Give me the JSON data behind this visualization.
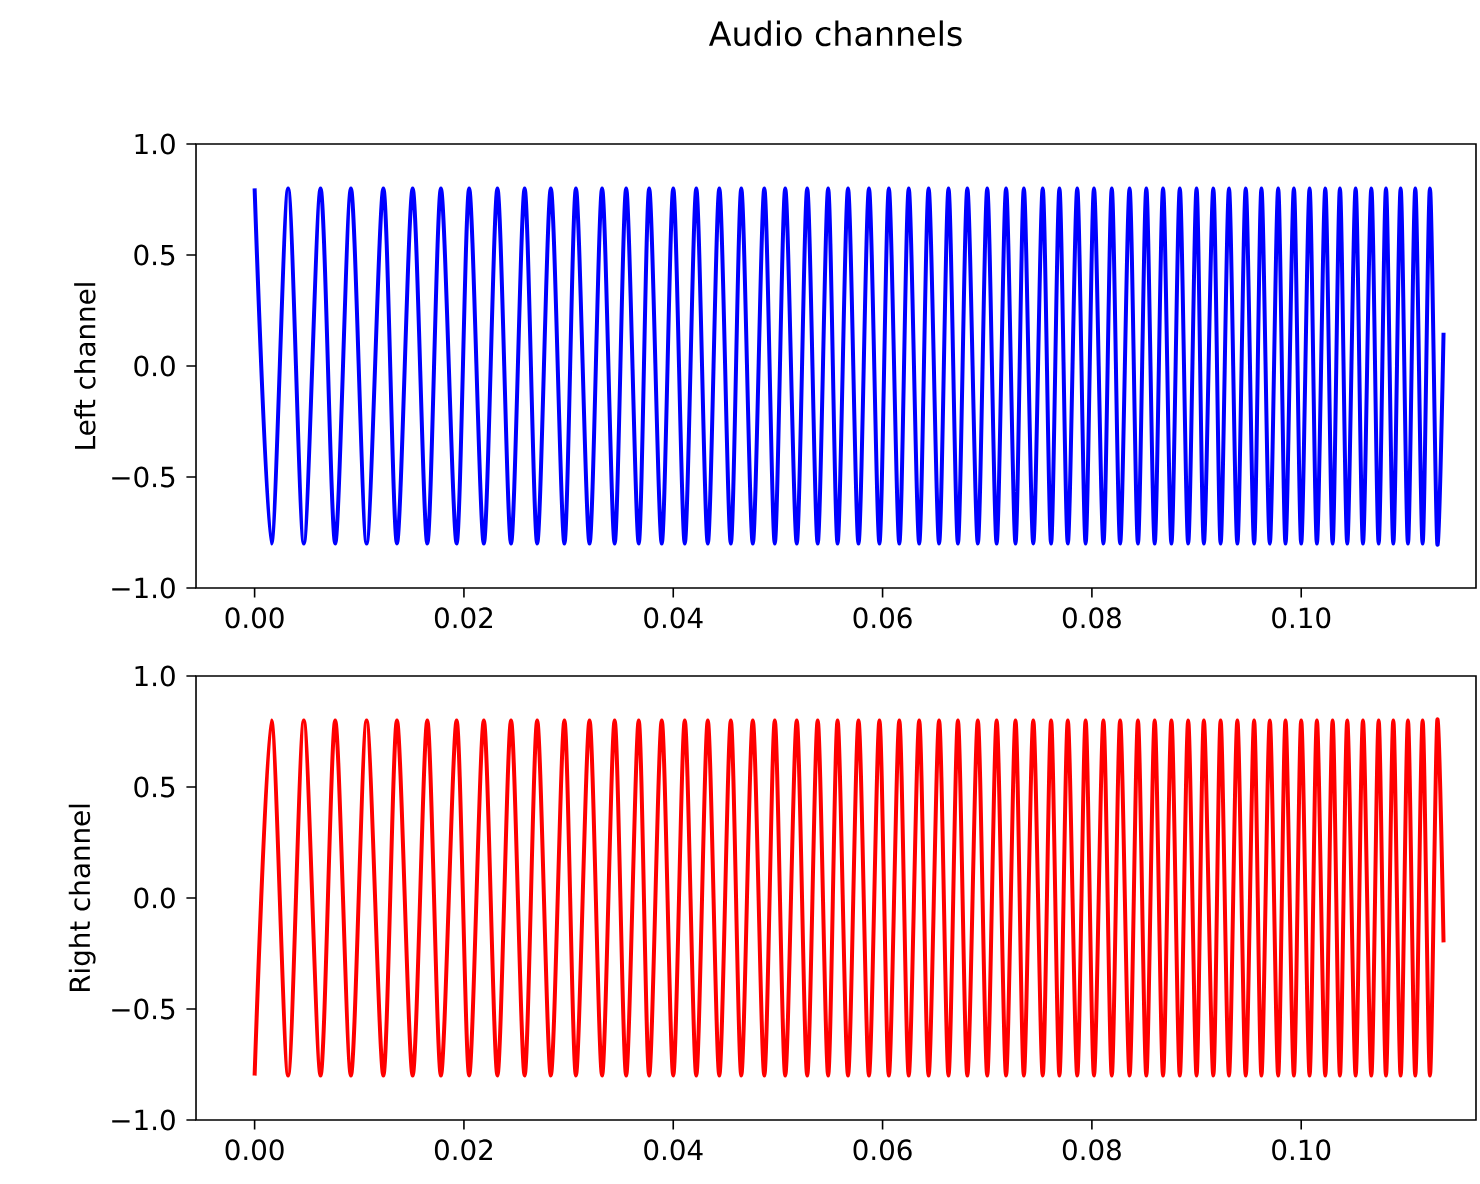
{
  "chart_data": [
    {
      "type": "line",
      "title": "Audio channels",
      "ylabel": "Left channel",
      "xlim": [
        -0.0056,
        0.1167
      ],
      "ylim": [
        -1.0,
        1.0
      ],
      "xticks": [
        {
          "value": 0.0,
          "label": "0.00"
        },
        {
          "value": 0.02,
          "label": "0.02"
        },
        {
          "value": 0.04,
          "label": "0.04"
        },
        {
          "value": 0.06,
          "label": "0.06"
        },
        {
          "value": 0.08,
          "label": "0.08"
        },
        {
          "value": 0.1,
          "label": "0.10"
        }
      ],
      "yticks": [
        {
          "value": -1.0,
          "label": "−1.0"
        },
        {
          "value": -0.5,
          "label": "−0.5"
        },
        {
          "value": 0.0,
          "label": "0.0"
        },
        {
          "value": 0.5,
          "label": "0.5"
        },
        {
          "value": 1.0,
          "label": "1.0"
        }
      ],
      "x": [
        0.0,
        0.0016,
        0.0032,
        0.0047,
        0.0063,
        0.0077,
        0.0092,
        0.0107,
        0.0123,
        0.0136,
        0.0151,
        0.0165,
        0.0178,
        0.0193,
        0.0205,
        0.0219,
        0.0232,
        0.0245,
        0.0258,
        0.027,
        0.0283,
        0.0296,
        0.0307,
        0.032,
        0.0332,
        0.0344,
        0.0355,
        0.0367,
        0.0377,
        0.0389,
        0.04,
        0.0411,
        0.0422,
        0.0433,
        0.0444,
        0.0455,
        0.0465,
        0.0476,
        0.0487,
        0.0497,
        0.0507,
        0.0518,
        0.0528,
        0.0538,
        0.0548,
        0.0557,
        0.0567,
        0.0577,
        0.0587,
        0.0597,
        0.0606,
        0.0616,
        0.0625,
        0.0635,
        0.0644,
        0.0654,
        0.0663,
        0.0672,
        0.0681,
        0.0691,
        0.07,
        0.0709,
        0.0718,
        0.0727,
        0.0735,
        0.0744,
        0.0753,
        0.0761,
        0.0769,
        0.0777,
        0.0786,
        0.0794,
        0.0802,
        0.0811,
        0.0819,
        0.0827,
        0.0836,
        0.0844,
        0.0852,
        0.086,
        0.0868,
        0.0876,
        0.0884,
        0.0892,
        0.09,
        0.0907,
        0.0916,
        0.0923,
        0.0931,
        0.0939,
        0.0947,
        0.0955,
        0.0962,
        0.097,
        0.0978,
        0.0985,
        0.0993,
        0.1,
        0.1008,
        0.1015,
        0.1023,
        0.103,
        0.1037,
        0.1044,
        0.1052,
        0.1059,
        0.1067,
        0.1074,
        0.1081,
        0.1088,
        0.1095,
        0.1102,
        0.1109,
        0.1116,
        0.1123,
        0.113,
        0.1136
      ],
      "series": [
        {
          "color": "#0000ff",
          "values": [
            0.8,
            -0.8,
            0.8,
            -0.8,
            0.8,
            -0.8,
            0.8,
            -0.8,
            0.8,
            -0.8,
            0.8,
            -0.8,
            0.8,
            -0.8,
            0.8,
            -0.8,
            0.8,
            -0.8,
            0.8,
            -0.8,
            0.8,
            -0.8,
            0.8,
            -0.8,
            0.8,
            -0.8,
            0.8,
            -0.8,
            0.8,
            -0.8,
            0.8,
            -0.8,
            0.8,
            -0.8,
            0.8,
            -0.8,
            0.8,
            -0.8,
            0.8,
            -0.8,
            0.8,
            -0.8,
            0.8,
            -0.8,
            0.8,
            -0.8,
            0.8,
            -0.8,
            0.8,
            -0.8,
            0.8,
            -0.8,
            0.8,
            -0.8,
            0.8,
            -0.8,
            0.8,
            -0.8,
            0.8,
            -0.8,
            0.8,
            -0.8,
            0.8,
            -0.8,
            0.8,
            -0.8,
            0.8,
            -0.8,
            0.8,
            -0.8,
            0.8,
            -0.8,
            0.8,
            -0.8,
            0.8,
            -0.8,
            0.8,
            -0.8,
            0.8,
            -0.8,
            0.8,
            -0.8,
            0.8,
            -0.8,
            0.8,
            -0.8,
            0.8,
            -0.8,
            0.8,
            -0.8,
            0.8,
            -0.8,
            0.8,
            -0.8,
            0.8,
            -0.8,
            0.8,
            -0.8,
            0.8,
            -0.8,
            0.8,
            -0.8,
            0.8,
            -0.8,
            0.8,
            -0.8,
            0.8,
            -0.8,
            0.8,
            -0.8,
            0.8,
            -0.8,
            0.8,
            -0.8,
            0.8,
            -0.8,
            0.15
          ]
        }
      ]
    },
    {
      "type": "line",
      "ylabel": "Right channel",
      "xlim": [
        -0.0056,
        0.1167
      ],
      "ylim": [
        -1.0,
        1.0
      ],
      "xticks": [
        {
          "value": 0.0,
          "label": "0.00"
        },
        {
          "value": 0.02,
          "label": "0.02"
        },
        {
          "value": 0.04,
          "label": "0.04"
        },
        {
          "value": 0.06,
          "label": "0.06"
        },
        {
          "value": 0.08,
          "label": "0.08"
        },
        {
          "value": 0.1,
          "label": "0.10"
        }
      ],
      "yticks": [
        {
          "value": -1.0,
          "label": "−1.0"
        },
        {
          "value": -0.5,
          "label": "−0.5"
        },
        {
          "value": 0.0,
          "label": "0.0"
        },
        {
          "value": 0.5,
          "label": "0.5"
        },
        {
          "value": 1.0,
          "label": "1.0"
        }
      ],
      "x": [
        0.0,
        0.0016,
        0.0032,
        0.0047,
        0.0063,
        0.0077,
        0.0092,
        0.0107,
        0.0123,
        0.0136,
        0.0151,
        0.0165,
        0.0178,
        0.0193,
        0.0205,
        0.0219,
        0.0232,
        0.0245,
        0.0258,
        0.027,
        0.0283,
        0.0296,
        0.0307,
        0.032,
        0.0332,
        0.0344,
        0.0355,
        0.0367,
        0.0377,
        0.0389,
        0.04,
        0.0411,
        0.0422,
        0.0433,
        0.0444,
        0.0455,
        0.0465,
        0.0476,
        0.0487,
        0.0497,
        0.0507,
        0.0518,
        0.0528,
        0.0538,
        0.0548,
        0.0557,
        0.0567,
        0.0577,
        0.0587,
        0.0597,
        0.0606,
        0.0616,
        0.0625,
        0.0635,
        0.0644,
        0.0654,
        0.0663,
        0.0672,
        0.0681,
        0.0691,
        0.07,
        0.0709,
        0.0718,
        0.0727,
        0.0735,
        0.0744,
        0.0753,
        0.0761,
        0.0769,
        0.0777,
        0.0786,
        0.0794,
        0.0802,
        0.0811,
        0.0819,
        0.0827,
        0.0836,
        0.0844,
        0.0852,
        0.086,
        0.0868,
        0.0876,
        0.0884,
        0.0892,
        0.09,
        0.0907,
        0.0916,
        0.0923,
        0.0931,
        0.0939,
        0.0947,
        0.0955,
        0.0962,
        0.097,
        0.0978,
        0.0985,
        0.0993,
        0.1,
        0.1008,
        0.1015,
        0.1023,
        0.103,
        0.1037,
        0.1044,
        0.1052,
        0.1059,
        0.1067,
        0.1074,
        0.1081,
        0.1088,
        0.1095,
        0.1102,
        0.1109,
        0.1116,
        0.1123,
        0.113,
        0.1136
      ],
      "series": [
        {
          "color": "#ff0000",
          "values": [
            -0.8,
            0.8,
            -0.8,
            0.8,
            -0.8,
            0.8,
            -0.8,
            0.8,
            -0.8,
            0.8,
            -0.8,
            0.8,
            -0.8,
            0.8,
            -0.8,
            0.8,
            -0.8,
            0.8,
            -0.8,
            0.8,
            -0.8,
            0.8,
            -0.8,
            0.8,
            -0.8,
            0.8,
            -0.8,
            0.8,
            -0.8,
            0.8,
            -0.8,
            0.8,
            -0.8,
            0.8,
            -0.8,
            0.8,
            -0.8,
            0.8,
            -0.8,
            0.8,
            -0.8,
            0.8,
            -0.8,
            0.8,
            -0.8,
            0.8,
            -0.8,
            0.8,
            -0.8,
            0.8,
            -0.8,
            0.8,
            -0.8,
            0.8,
            -0.8,
            0.8,
            -0.8,
            0.8,
            -0.8,
            0.8,
            -0.8,
            0.8,
            -0.8,
            0.8,
            -0.8,
            0.8,
            -0.8,
            0.8,
            -0.8,
            0.8,
            -0.8,
            0.8,
            -0.8,
            0.8,
            -0.8,
            0.8,
            -0.8,
            0.8,
            -0.8,
            0.8,
            -0.8,
            0.8,
            -0.8,
            0.8,
            -0.8,
            0.8,
            -0.8,
            0.8,
            -0.8,
            0.8,
            -0.8,
            0.8,
            -0.8,
            0.8,
            -0.8,
            0.8,
            -0.8,
            0.8,
            -0.8,
            0.8,
            -0.8,
            0.8,
            -0.8,
            0.8,
            -0.8,
            0.8,
            -0.8,
            0.8,
            -0.8,
            0.8,
            -0.8,
            0.8,
            -0.8,
            0.8,
            -0.8,
            0.8,
            -0.2
          ]
        }
      ]
    }
  ]
}
